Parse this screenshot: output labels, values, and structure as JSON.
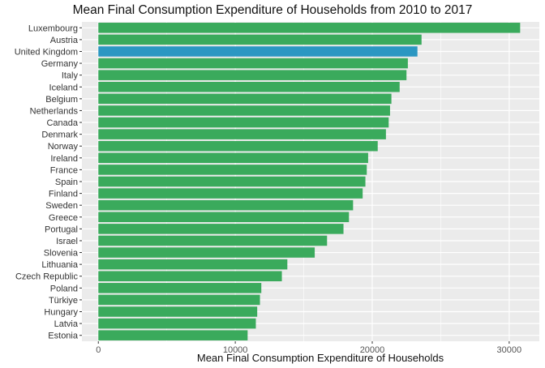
{
  "chart_data": {
    "type": "bar",
    "orientation": "horizontal",
    "title": "Mean Final Consumption Expenditure of Households from 2010 to 2017",
    "xlabel": "Mean Final Consumption Expenditure of Households",
    "ylabel": "",
    "xlim": [
      -1200,
      32200
    ],
    "xticks": [
      0,
      10000,
      20000,
      30000
    ],
    "grid": true,
    "legend": "none",
    "highlight": "United Kingdom",
    "colors": {
      "bar": "#3aaa5c",
      "highlight": "#2b97c2",
      "panel": "#ebebeb",
      "grid": "#ffffff"
    },
    "categories": [
      "Luxembourg",
      "Austria",
      "United Kingdom",
      "Germany",
      "Italy",
      "Iceland",
      "Belgium",
      "Netherlands",
      "Canada",
      "Denmark",
      "Norway",
      "Ireland",
      "France",
      "Spain",
      "Finland",
      "Sweden",
      "Greece",
      "Portugal",
      "Israel",
      "Slovenia",
      "Lithuania",
      "Czech Republic",
      "Poland",
      "Türkiye",
      "Hungary",
      "Latvia",
      "Estonia"
    ],
    "values": [
      30800,
      23600,
      23300,
      22600,
      22500,
      22000,
      21400,
      21300,
      21200,
      21000,
      20400,
      19700,
      19600,
      19500,
      19300,
      18600,
      18300,
      17900,
      16700,
      15800,
      13800,
      13400,
      11900,
      11800,
      11600,
      11500,
      10900
    ]
  }
}
